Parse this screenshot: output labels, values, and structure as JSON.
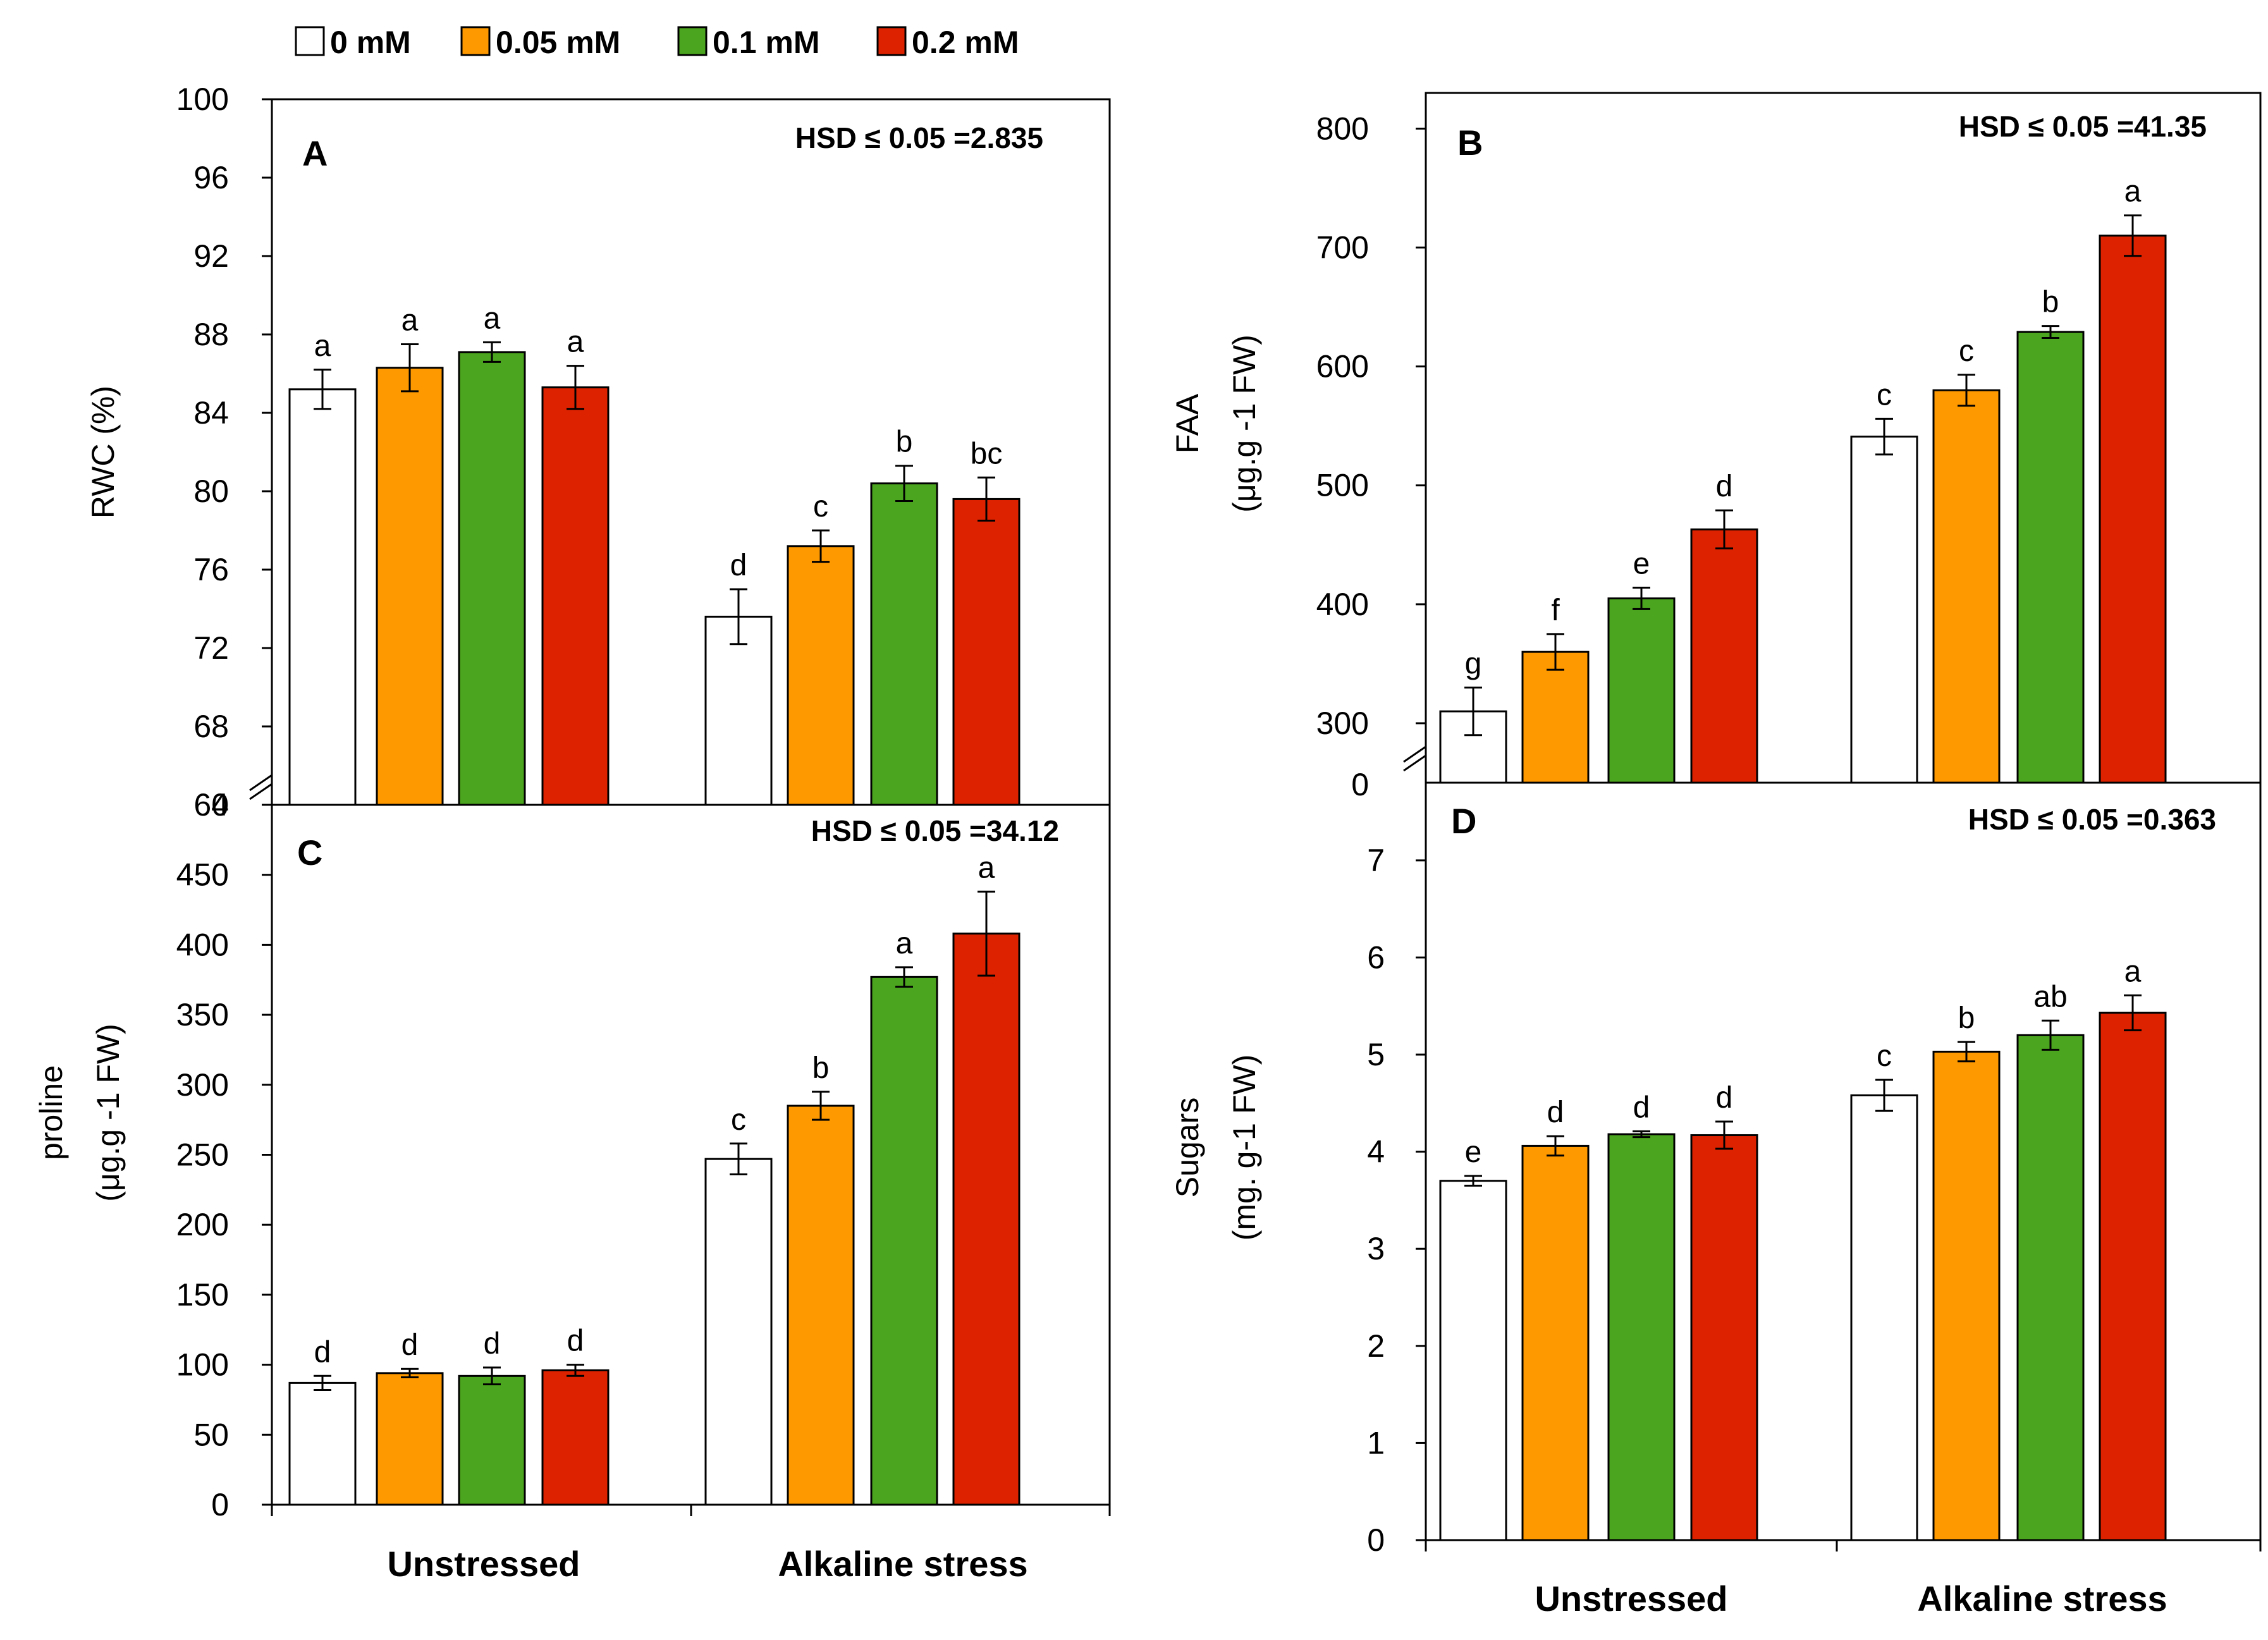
{
  "legend": [
    {
      "label": "0 mM",
      "color": "#ffffff"
    },
    {
      "label": "0.05 mM",
      "color": "#ff9900"
    },
    {
      "label": "0.1 mM",
      "color": "#4ca51e"
    },
    {
      "label": "0.2 mM",
      "color": "#dd2200"
    }
  ],
  "x_categories": [
    "Unstressed",
    "Alkaline stress"
  ],
  "chart_data": [
    {
      "type": "bar",
      "panel": "A",
      "hsd_text": "HSD ≤ 0.05 =2.835",
      "ylabel": [
        "RWC (%)"
      ],
      "ylim": [
        64,
        100
      ],
      "y_ticks": [
        64,
        68,
        72,
        76,
        80,
        84,
        88,
        92,
        96,
        100
      ],
      "axis_break_zero": "0",
      "categories": [
        "Unstressed",
        "Alkaline stress"
      ],
      "series": [
        {
          "name": "0 mM",
          "values": [
            85.2,
            73.6
          ],
          "errors": [
            1.0,
            1.4
          ],
          "letters": [
            "a",
            "d"
          ]
        },
        {
          "name": "0.05 mM",
          "values": [
            86.3,
            77.2
          ],
          "errors": [
            1.2,
            0.8
          ],
          "letters": [
            "a",
            "c"
          ]
        },
        {
          "name": "0.1 mM",
          "values": [
            87.1,
            80.4
          ],
          "errors": [
            0.5,
            0.9
          ],
          "letters": [
            "a",
            "b"
          ]
        },
        {
          "name": "0.2 mM",
          "values": [
            85.3,
            79.6
          ],
          "errors": [
            1.1,
            1.1
          ],
          "letters": [
            "a",
            "bc"
          ]
        }
      ]
    },
    {
      "type": "bar",
      "panel": "B",
      "hsd_text": "HSD ≤ 0.05 =41.35",
      "ylabel": [
        "FAA",
        "(μg.g -1 FW)"
      ],
      "ylim": [
        250,
        830
      ],
      "y_ticks": [
        300,
        400,
        500,
        600,
        700,
        800
      ],
      "axis_break_zero": "0",
      "categories": [
        "Unstressed",
        "Alkaline stress"
      ],
      "series": [
        {
          "name": "0 mM",
          "values": [
            310,
            541
          ],
          "errors": [
            20,
            15
          ],
          "letters": [
            "g",
            "c"
          ]
        },
        {
          "name": "0.05 mM",
          "values": [
            360,
            580
          ],
          "errors": [
            15,
            13
          ],
          "letters": [
            "f",
            "c"
          ]
        },
        {
          "name": "0.1 mM",
          "values": [
            405,
            629
          ],
          "errors": [
            9,
            5
          ],
          "letters": [
            "e",
            "b"
          ]
        },
        {
          "name": "0.2 mM",
          "values": [
            463,
            710
          ],
          "errors": [
            16,
            17
          ],
          "letters": [
            "d",
            "a"
          ]
        }
      ]
    },
    {
      "type": "bar",
      "panel": "C",
      "hsd_text": "HSD ≤ 0.05 =34.12",
      "ylabel": [
        "proline",
        "(μg.g -1 FW)"
      ],
      "ylim": [
        0,
        500
      ],
      "y_ticks": [
        0,
        50,
        100,
        150,
        200,
        250,
        300,
        350,
        400,
        450
      ],
      "categories": [
        "Unstressed",
        "Alkaline stress"
      ],
      "series": [
        {
          "name": "0 mM",
          "values": [
            87,
            247
          ],
          "errors": [
            5,
            11
          ],
          "letters": [
            "d",
            "c"
          ]
        },
        {
          "name": "0.05 mM",
          "values": [
            94,
            285
          ],
          "errors": [
            3,
            10
          ],
          "letters": [
            "d",
            "b"
          ]
        },
        {
          "name": "0.1 mM",
          "values": [
            92,
            377
          ],
          "errors": [
            6,
            7
          ],
          "letters": [
            "d",
            "a"
          ]
        },
        {
          "name": "0.2 mM",
          "values": [
            96,
            408
          ],
          "errors": [
            4,
            30
          ],
          "letters": [
            "d",
            "a"
          ]
        }
      ]
    },
    {
      "type": "bar",
      "panel": "D",
      "hsd_text": "HSD ≤ 0.05 =0.363",
      "ylabel": [
        "Sugars",
        "(mg. g-1 FW)"
      ],
      "ylim": [
        0,
        7.8
      ],
      "y_ticks": [
        0,
        1,
        2,
        3,
        4,
        5,
        6,
        7
      ],
      "categories": [
        "Unstressed",
        "Alkaline stress"
      ],
      "series": [
        {
          "name": "0 mM",
          "values": [
            3.7,
            4.58
          ],
          "errors": [
            0.05,
            0.16
          ],
          "letters": [
            "e",
            "c"
          ]
        },
        {
          "name": "0.05 mM",
          "values": [
            4.06,
            5.03
          ],
          "errors": [
            0.1,
            0.1
          ],
          "letters": [
            "d",
            "b"
          ]
        },
        {
          "name": "0.1 mM",
          "values": [
            4.18,
            5.2
          ],
          "errors": [
            0.03,
            0.15
          ],
          "letters": [
            "d",
            "ab"
          ]
        },
        {
          "name": "0.2 mM",
          "values": [
            4.17,
            5.43
          ],
          "errors": [
            0.14,
            0.18
          ],
          "letters": [
            "d",
            "a"
          ]
        }
      ]
    }
  ]
}
